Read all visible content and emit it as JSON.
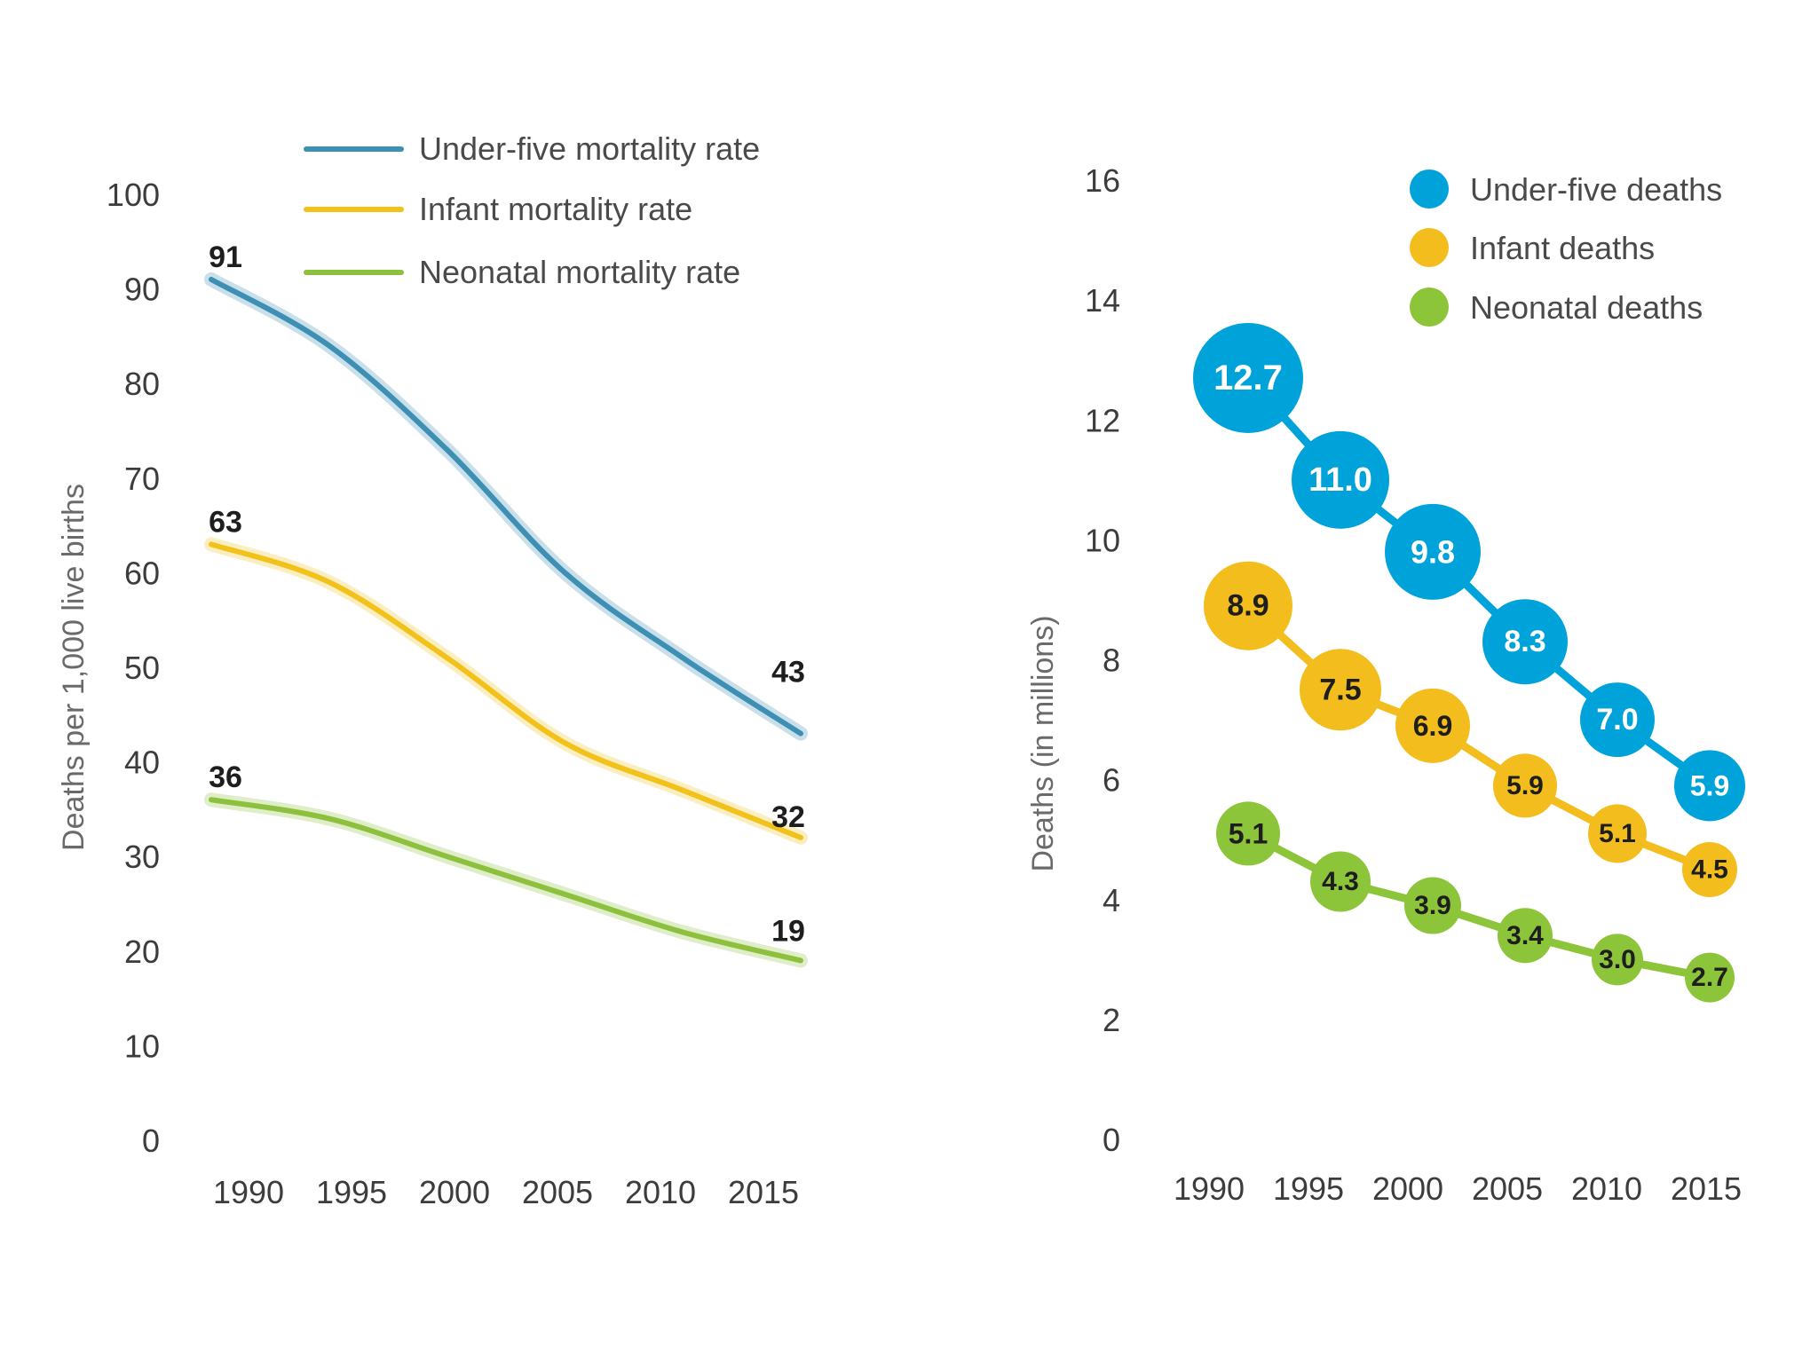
{
  "chart_data": [
    {
      "type": "line",
      "x": [
        1990,
        1995,
        2000,
        2005,
        2010,
        2015
      ],
      "xlim": [
        1990,
        2015
      ],
      "xticks": [
        "1990",
        "1995",
        "2000",
        "2005",
        "2010",
        "2015"
      ],
      "ylim": [
        0,
        100
      ],
      "yticks": [
        "0",
        "10",
        "20",
        "30",
        "40",
        "50",
        "60",
        "70",
        "80",
        "90",
        "100"
      ],
      "ylabel": "Deaths per 1,000 live births",
      "legend_position": "top",
      "series": [
        {
          "name": "Under-five mortality rate",
          "color": "#3d8fb3",
          "values": [
            91,
            84,
            73,
            60,
            51,
            43
          ],
          "start_label": "91",
          "end_label": "43"
        },
        {
          "name": "Infant mortality rate",
          "color": "#f2c21b",
          "values": [
            63,
            59,
            51,
            42,
            37,
            32
          ],
          "start_label": "63",
          "end_label": "32"
        },
        {
          "name": "Neonatal mortality rate",
          "color": "#8dc03c",
          "values": [
            36,
            34,
            30,
            26,
            22,
            19
          ],
          "start_label": "36",
          "end_label": "19"
        }
      ]
    },
    {
      "type": "scatter",
      "x": [
        1990,
        1995,
        2000,
        2005,
        2010,
        2015
      ],
      "xticks": [
        "1990",
        "1995",
        "2000",
        "2005",
        "2010",
        "2015"
      ],
      "ylim": [
        0,
        16
      ],
      "yticks": [
        "0",
        "2",
        "4",
        "6",
        "8",
        "10",
        "12",
        "14",
        "16"
      ],
      "ylabel": "Deaths (in millions)",
      "legend_position": "top-right",
      "series": [
        {
          "name": "Under-five deaths",
          "color": "#00a3d9",
          "text_color": "#ffffff",
          "values": [
            12.7,
            11.0,
            9.8,
            8.3,
            7.0,
            5.9
          ],
          "labels": [
            "12.7",
            "11.0",
            "9.8",
            "8.3",
            "7.0",
            "5.9"
          ]
        },
        {
          "name": "Infant deaths",
          "color": "#f2bd1d",
          "text_color": "#1e1e1e",
          "values": [
            8.9,
            7.5,
            6.9,
            5.9,
            5.1,
            4.5
          ],
          "labels": [
            "8.9",
            "7.5",
            "6.9",
            "5.9",
            "5.1",
            "4.5"
          ]
        },
        {
          "name": "Neonatal deaths",
          "color": "#8cc43a",
          "text_color": "#1e1e1e",
          "values": [
            5.1,
            4.3,
            3.9,
            3.4,
            3.0,
            2.7
          ],
          "labels": [
            "5.1",
            "4.3",
            "3.9",
            "3.4",
            "3.0",
            "2.7"
          ]
        }
      ]
    }
  ]
}
